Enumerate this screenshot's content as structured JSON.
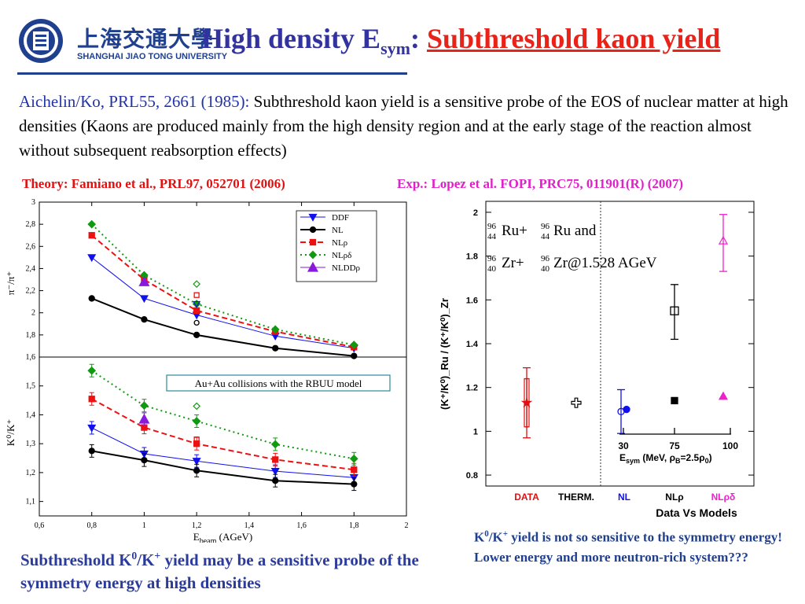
{
  "header": {
    "logo_cn": "上海交通大學",
    "logo_en": "SHANGHAI JIAO TONG UNIVERSITY",
    "title_main": "High density E",
    "title_sub": "sym",
    "title_colon": ": ",
    "title_red": "Subthreshold kaon yield"
  },
  "intro": {
    "reference": "Aichelin/Ko, PRL55, 2661 (1985):",
    "text": " Subthreshold kaon yield is a sensitive probe of the EOS of nuclear matter at high densities (Kaons are produced mainly from the high density region and at the early stage of the reaction almost without subsequent reabsorption effects)"
  },
  "theory_ref": "Theory: Famiano et al., PRL97, 052701 (2006)",
  "exp_ref": "Exp.: Lopez et al. FOPI, PRC75, 011901(R) (2007)",
  "caption_left": {
    "a": "Subthreshold K",
    "sup1": "0",
    "b": "/K",
    "sup2": "+",
    "c": " yield may be a sensitive probe of the symmetry energy at high densities"
  },
  "caption_right": {
    "a": "K",
    "sup1": "0",
    "b": "/K",
    "sup2": "+",
    "c": " yield is not so sensitive to the symmetry energy! Lower energy and more neutron-rich system???"
  },
  "colors": {
    "DDF": "#1010ee",
    "NL": "#000000",
    "NLrho": "#ee1111",
    "NLrhodelta": "#119911",
    "NLDDrho": "#8a1adb",
    "data": "#e01010",
    "magenta": "#ee22cc"
  },
  "chart_data": [
    {
      "type": "line",
      "panel": "upper",
      "ylabel": "π⁻/π⁺",
      "ylim": [
        1.6,
        3
      ],
      "yticks": [
        "3",
        "2,8",
        "2,6",
        "2,4",
        "2,2",
        "2",
        "1,8",
        "1,6"
      ],
      "x": [
        0.8,
        1.0,
        1.2,
        1.5,
        1.8
      ],
      "legend": [
        "DDF",
        "NL",
        "NLρ",
        "NLρδ",
        "NLDDρ"
      ],
      "legend_position": "top-right",
      "series": [
        {
          "name": "DDF",
          "values": [
            2.5,
            2.13,
            1.98,
            1.79,
            1.68
          ]
        },
        {
          "name": "NL",
          "values": [
            2.13,
            1.94,
            1.8,
            1.68,
            1.61
          ]
        },
        {
          "name": "NLρ",
          "values": [
            2.7,
            2.3,
            2.02,
            1.83,
            1.69
          ]
        },
        {
          "name": "NLρδ",
          "values": [
            2.8,
            2.34,
            2.08,
            1.85,
            1.71
          ]
        },
        {
          "name": "NLDDρ",
          "x": [
            1.0
          ],
          "values": [
            2.28
          ]
        }
      ],
      "open_points": [
        {
          "x": 1.2,
          "y": 2.26,
          "series": "NLρδ"
        },
        {
          "x": 1.2,
          "y": 2.16,
          "series": "NLρ"
        },
        {
          "x": 1.2,
          "y": 2.08,
          "series": "DDF"
        },
        {
          "x": 1.2,
          "y": 1.91,
          "series": "NL"
        }
      ]
    },
    {
      "type": "line",
      "panel": "lower",
      "ylabel": "K⁰/K⁺",
      "xlabel_main": "E",
      "xlabel_sub": "beam",
      "xlabel_unit": " (AGeV)",
      "xlim": [
        0.6,
        2
      ],
      "ylim": [
        1.05,
        1.6
      ],
      "yticks": [
        "1,5",
        "1,4",
        "1,3",
        "1,2",
        "1,1"
      ],
      "xticks": [
        "0,6",
        "0,8",
        "1",
        "1,2",
        "1,4",
        "1,6",
        "1,8",
        "2"
      ],
      "x": [
        0.8,
        1.0,
        1.2,
        1.5,
        1.8
      ],
      "annotation": "Au+Au collisions with the RBUU model",
      "series": [
        {
          "name": "DDF",
          "values": [
            1.355,
            1.265,
            1.24,
            1.205,
            1.183
          ]
        },
        {
          "name": "NL",
          "values": [
            1.275,
            1.243,
            1.207,
            1.172,
            1.16
          ]
        },
        {
          "name": "NLρ",
          "values": [
            1.455,
            1.356,
            1.3,
            1.245,
            1.21
          ]
        },
        {
          "name": "NLρδ",
          "values": [
            1.553,
            1.432,
            1.378,
            1.298,
            1.248
          ]
        },
        {
          "name": "NLDDρ",
          "x": [
            1.0
          ],
          "values": [
            1.385
          ]
        }
      ],
      "open_points": [
        {
          "x": 1.2,
          "y": 1.43,
          "series": "NLρδ"
        },
        {
          "x": 1.2,
          "y": 1.315,
          "series": "NLρ"
        }
      ]
    },
    {
      "type": "scatter",
      "panel": "right",
      "ylabel": "(K⁺/K⁰)_Ru / (K⁺/K⁰)_Zr",
      "ylim": [
        0.75,
        2.05
      ],
      "yticks": [
        "2",
        "1.8",
        "1.6",
        "1.4",
        "1.2",
        "1",
        "0.8"
      ],
      "categories": [
        "DATA",
        "THERM.",
        "NL",
        "NLρ",
        "NLρδ"
      ],
      "xlabel": "Data Vs Models",
      "reaction_line1": "Ru+",
      "reaction_line1b": "Ru and",
      "reaction_line2": "Zr+",
      "reaction_line2b": "Zr@1.528 AGeV",
      "mass_number": "96",
      "z_ru": "44",
      "z_zr": "40",
      "points": [
        {
          "category": "DATA",
          "value": 1.13,
          "err_low": 0.97,
          "err_high": 1.29,
          "marker": "star"
        },
        {
          "category": "DATA",
          "value": 1.13,
          "err_low": 1.02,
          "err_high": 1.24,
          "marker": "open-rect"
        },
        {
          "category": "THERM.",
          "value": 1.13,
          "marker": "plus"
        },
        {
          "category": "NL",
          "value": 1.09,
          "err_low": 0.99,
          "err_high": 1.19,
          "marker": "open-circle"
        },
        {
          "category": "NL",
          "value": 1.1,
          "marker": "circle"
        },
        {
          "category": "NLρ",
          "value": 1.55,
          "err_low": 1.42,
          "err_high": 1.67,
          "marker": "open-square"
        },
        {
          "category": "NLρ",
          "value": 1.14,
          "marker": "square"
        },
        {
          "category": "NLρδ",
          "value": 1.87,
          "err_low": 1.73,
          "err_high": 1.99,
          "marker": "open-triangle"
        },
        {
          "category": "NLρδ",
          "value": 1.16,
          "marker": "triangle"
        }
      ],
      "inset": {
        "ticks": [
          "30",
          "75",
          "100"
        ],
        "label_main": "E",
        "label_sub": "sym",
        "label_rest": " (MeV, ρ",
        "label_sub2": "B",
        "label_end": "=2.5ρ",
        "label_sub3": "0",
        "label_close": ")"
      }
    }
  ]
}
